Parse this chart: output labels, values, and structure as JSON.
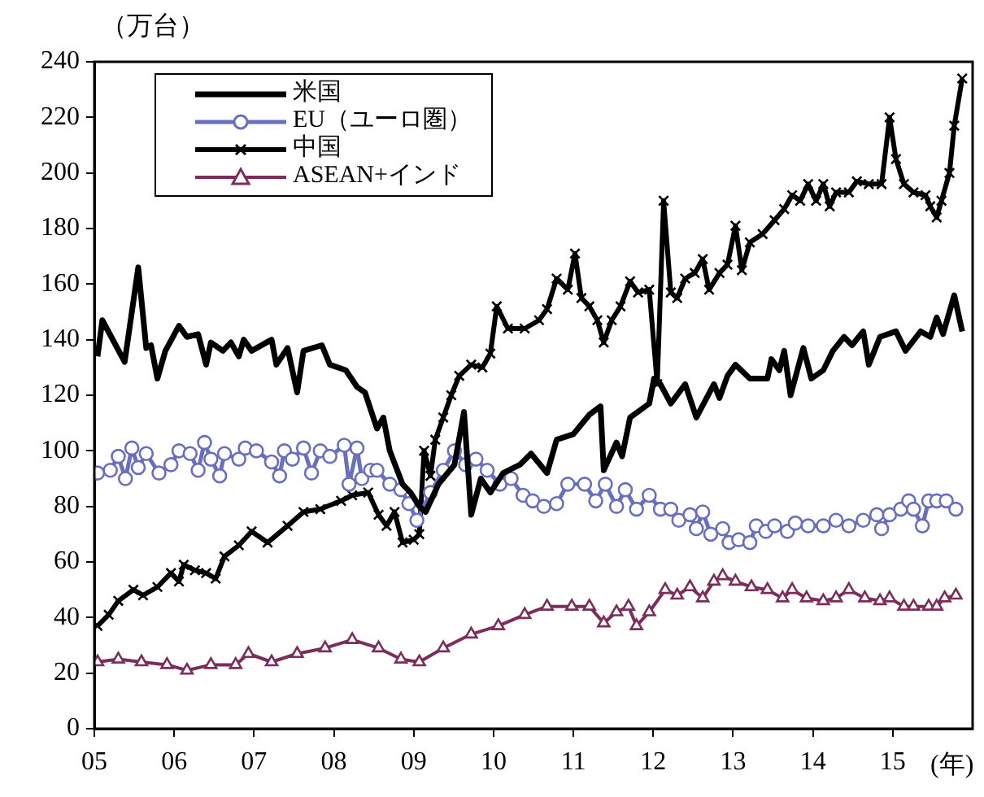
{
  "chart_data": {
    "type": "line",
    "ylabel": "（万台）",
    "xlabel": "(年)",
    "xlim": [
      2005,
      2016
    ],
    "xticks": [
      {
        "value": 2005,
        "label": "05"
      },
      {
        "value": 2006,
        "label": "06"
      },
      {
        "value": 2007,
        "label": "07"
      },
      {
        "value": 2008,
        "label": "08"
      },
      {
        "value": 2009,
        "label": "09"
      },
      {
        "value": 2010,
        "label": "10"
      },
      {
        "value": 2011,
        "label": "11"
      },
      {
        "value": 2012,
        "label": "12"
      },
      {
        "value": 2013,
        "label": "13"
      },
      {
        "value": 2014,
        "label": "14"
      },
      {
        "value": 2015,
        "label": "15"
      }
    ],
    "ylim": [
      0,
      240
    ],
    "yticks": [
      0,
      20,
      40,
      60,
      80,
      100,
      120,
      140,
      160,
      180,
      200,
      220,
      240
    ],
    "grid": false,
    "legend": "top left",
    "line_style": "solid",
    "series": [
      {
        "name": "米国",
        "color": "#000000",
        "marker": "none",
        "x": [
          2005.04,
          2005.1,
          2005.38,
          2005.55,
          2005.65,
          2005.71,
          2005.79,
          2005.89,
          2006.06,
          2006.16,
          2006.3,
          2006.4,
          2006.46,
          2006.61,
          2006.71,
          2006.81,
          2006.87,
          2006.97,
          2007.22,
          2007.28,
          2007.42,
          2007.54,
          2007.62,
          2007.85,
          2007.95,
          2008.15,
          2008.29,
          2008.39,
          2008.54,
          2008.62,
          2008.7,
          2008.86,
          2008.96,
          2009.07,
          2009.15,
          2009.31,
          2009.51,
          2009.63,
          2009.72,
          2009.84,
          2009.96,
          2010.12,
          2010.33,
          2010.47,
          2010.67,
          2010.79,
          2011,
          2011.2,
          2011.34,
          2011.38,
          2011.54,
          2011.61,
          2011.71,
          2011.95,
          2012.01,
          2012.09,
          2012.22,
          2012.4,
          2012.54,
          2012.76,
          2012.83,
          2012.93,
          2013.03,
          2013.21,
          2013.43,
          2013.48,
          2013.58,
          2013.64,
          2013.72,
          2013.88,
          2013.98,
          2014.13,
          2014.25,
          2014.39,
          2014.49,
          2014.63,
          2014.7,
          2014.84,
          2015.04,
          2015.16,
          2015.35,
          2015.47,
          2015.55,
          2015.63,
          2015.77,
          2015.87
        ],
        "values": [
          134,
          147,
          132,
          166,
          137,
          138,
          126,
          136,
          145,
          141,
          142,
          131,
          139,
          136,
          139,
          134,
          140,
          136,
          140,
          131,
          137,
          121,
          136,
          138,
          131,
          129,
          123,
          121,
          108,
          112,
          100,
          88,
          85,
          80,
          78,
          88,
          95,
          114,
          77,
          90,
          85,
          92,
          95,
          99,
          92,
          104,
          106,
          113,
          116,
          93,
          103,
          98,
          112,
          117,
          126,
          124,
          117,
          124,
          112,
          124,
          119,
          127,
          131,
          126,
          126,
          133,
          129,
          136,
          120,
          137,
          126,
          129,
          136,
          141,
          138,
          143,
          131,
          141,
          143,
          136,
          143,
          141,
          148,
          142,
          156,
          143
        ]
      },
      {
        "name": "EU（ユーロ圏）",
        "color": "#6a6fbd",
        "marker": "circle",
        "x": [
          2005.04,
          2005.2,
          2005.3,
          2005.39,
          2005.47,
          2005.55,
          2005.65,
          2005.81,
          2005.96,
          2006.06,
          2006.2,
          2006.3,
          2006.38,
          2006.46,
          2006.57,
          2006.63,
          2006.81,
          2006.89,
          2007.03,
          2007.22,
          2007.32,
          2007.38,
          2007.48,
          2007.62,
          2007.72,
          2007.83,
          2007.95,
          2008.13,
          2008.19,
          2008.29,
          2008.35,
          2008.46,
          2008.54,
          2008.7,
          2008.84,
          2008.94,
          2009.04,
          2009.21,
          2009.37,
          2009.51,
          2009.65,
          2009.78,
          2009.92,
          2010.08,
          2010.22,
          2010.37,
          2010.49,
          2010.63,
          2010.79,
          2010.93,
          2011.14,
          2011.28,
          2011.4,
          2011.54,
          2011.65,
          2011.79,
          2011.95,
          2012.09,
          2012.22,
          2012.32,
          2012.46,
          2012.54,
          2012.62,
          2012.72,
          2012.87,
          2012.95,
          2013.07,
          2013.21,
          2013.29,
          2013.41,
          2013.52,
          2013.68,
          2013.78,
          2013.94,
          2014.13,
          2014.29,
          2014.45,
          2014.63,
          2014.8,
          2014.86,
          2014.96,
          2015.1,
          2015.2,
          2015.26,
          2015.37,
          2015.45,
          2015.55,
          2015.67,
          2015.79
        ],
        "values": [
          92,
          93,
          98,
          90,
          101,
          94,
          99,
          92,
          95,
          100,
          99,
          93,
          103,
          97,
          91,
          99,
          97,
          101,
          100,
          96,
          91,
          100,
          97,
          101,
          92,
          100,
          98,
          102,
          88,
          101,
          90,
          93,
          93,
          88,
          86,
          81,
          75,
          85,
          93,
          100,
          95,
          97,
          93,
          88,
          90,
          84,
          82,
          80,
          81,
          88,
          88,
          82,
          88,
          80,
          86,
          79,
          84,
          79,
          79,
          75,
          77,
          72,
          78,
          70,
          72,
          67,
          68,
          67,
          73,
          71,
          73,
          71,
          74,
          73,
          73,
          75,
          73,
          75,
          77,
          72,
          77,
          79,
          82,
          79,
          73,
          82,
          82,
          82,
          79
        ]
      },
      {
        "name": "中国",
        "color": "#000000",
        "marker": "cross",
        "x": [
          2005.04,
          2005.18,
          2005.3,
          2005.49,
          2005.61,
          2005.79,
          2005.96,
          2006.06,
          2006.12,
          2006.26,
          2006.4,
          2006.52,
          2006.63,
          2006.81,
          2006.97,
          2007.17,
          2007.42,
          2007.62,
          2007.83,
          2008.09,
          2008.23,
          2008.43,
          2008.56,
          2008.66,
          2008.76,
          2008.86,
          2009,
          2009.07,
          2009.13,
          2009.21,
          2009.27,
          2009.37,
          2009.47,
          2009.57,
          2009.72,
          2009.86,
          2009.96,
          2010.04,
          2010.18,
          2010.39,
          2010.57,
          2010.67,
          2010.79,
          2010.93,
          2011.02,
          2011.1,
          2011.2,
          2011.3,
          2011.38,
          2011.48,
          2011.59,
          2011.71,
          2011.81,
          2011.95,
          2012.05,
          2012.13,
          2012.22,
          2012.3,
          2012.4,
          2012.52,
          2012.62,
          2012.7,
          2012.83,
          2012.93,
          2013.03,
          2013.11,
          2013.21,
          2013.37,
          2013.52,
          2013.64,
          2013.74,
          2013.84,
          2013.94,
          2014.04,
          2014.13,
          2014.21,
          2014.29,
          2014.45,
          2014.55,
          2014.7,
          2014.86,
          2014.96,
          2015.04,
          2015.14,
          2015.26,
          2015.41,
          2015.47,
          2015.55,
          2015.61,
          2015.71,
          2015.77,
          2015.87
        ],
        "values": [
          37,
          41,
          46,
          50,
          48,
          51,
          56,
          53,
          59,
          57,
          56,
          54,
          62,
          66,
          71,
          67,
          73,
          78,
          79,
          82,
          84,
          85,
          77,
          73,
          78,
          67,
          68,
          70,
          100,
          91,
          104,
          112,
          120,
          127,
          131,
          130,
          135,
          152,
          144,
          144,
          147,
          151,
          162,
          158,
          171,
          155,
          152,
          147,
          139,
          147,
          152,
          161,
          157,
          158,
          124,
          190,
          157,
          155,
          162,
          164,
          169,
          158,
          164,
          167,
          181,
          165,
          175,
          178,
          183,
          187,
          192,
          190,
          196,
          190,
          196,
          188,
          193,
          193,
          197,
          196,
          196,
          220,
          205,
          196,
          193,
          192,
          188,
          184,
          190,
          200,
          217,
          234
        ]
      },
      {
        "name": "ASEAN+インド",
        "color": "#7b2d5c",
        "marker": "triangle",
        "x": [
          2005.04,
          2005.3,
          2005.59,
          2005.91,
          2006.16,
          2006.46,
          2006.77,
          2006.93,
          2007.22,
          2007.54,
          2007.89,
          2008.23,
          2008.56,
          2008.84,
          2009.07,
          2009.37,
          2009.72,
          2010.06,
          2010.39,
          2010.67,
          2010.98,
          2011.2,
          2011.38,
          2011.54,
          2011.69,
          2011.79,
          2011.95,
          2012.15,
          2012.3,
          2012.46,
          2012.62,
          2012.76,
          2012.87,
          2013.03,
          2013.23,
          2013.43,
          2013.62,
          2013.74,
          2013.92,
          2014.13,
          2014.29,
          2014.45,
          2014.65,
          2014.84,
          2014.96,
          2015.14,
          2015.26,
          2015.45,
          2015.55,
          2015.65,
          2015.79
        ],
        "values": [
          24,
          25,
          24,
          23,
          21,
          23,
          23,
          27,
          24,
          27,
          29,
          32,
          29,
          25,
          24,
          29,
          34,
          37,
          41,
          44,
          44,
          44,
          38,
          42,
          44,
          37,
          42,
          50,
          48,
          51,
          47,
          53,
          55,
          53,
          51,
          50,
          47,
          50,
          47,
          46,
          47,
          50,
          47,
          46,
          47,
          44,
          44,
          44,
          44,
          47,
          48
        ]
      }
    ]
  }
}
